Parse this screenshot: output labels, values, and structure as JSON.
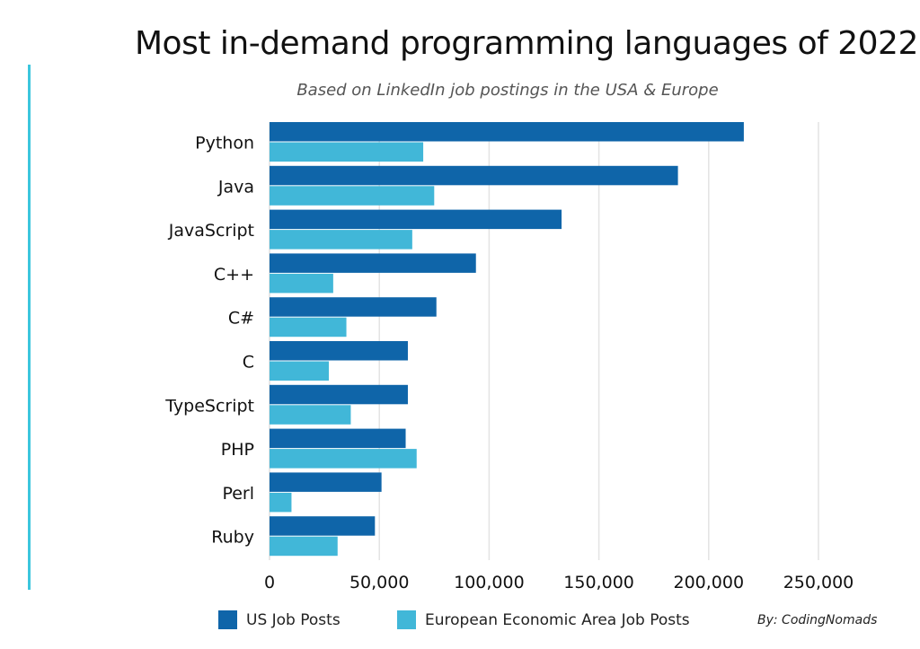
{
  "chart_data": {
    "type": "bar",
    "orientation": "horizontal",
    "title": "Most in-demand programming languages of 2022",
    "subtitle": "Based on LinkedIn job postings in the USA & Europe",
    "categories": [
      "Python",
      "Java",
      "JavaScript",
      "C++",
      "C#",
      "C",
      "TypeScript",
      "PHP",
      "Perl",
      "Ruby"
    ],
    "series": [
      {
        "name": "US Job Posts",
        "color": "#0f65a9",
        "values": [
          216000,
          186000,
          133000,
          94000,
          76000,
          63000,
          63000,
          62000,
          51000,
          48000
        ]
      },
      {
        "name": "European Economic Area Job Posts",
        "color": "#41b7d8",
        "values": [
          70000,
          75000,
          65000,
          29000,
          35000,
          27000,
          37000,
          67000,
          10000,
          31000
        ]
      }
    ],
    "xlim": [
      0,
      250000
    ],
    "xticks": [
      0,
      50000,
      100000,
      150000,
      200000,
      250000
    ],
    "xtick_labels": [
      "0",
      "50,000",
      "100,000",
      "150,000",
      "200,000",
      "250,000"
    ],
    "xlabel": "",
    "ylabel": "",
    "grid": "vertical",
    "legend_position": "bottom"
  },
  "credit": "By: CodingNomads"
}
